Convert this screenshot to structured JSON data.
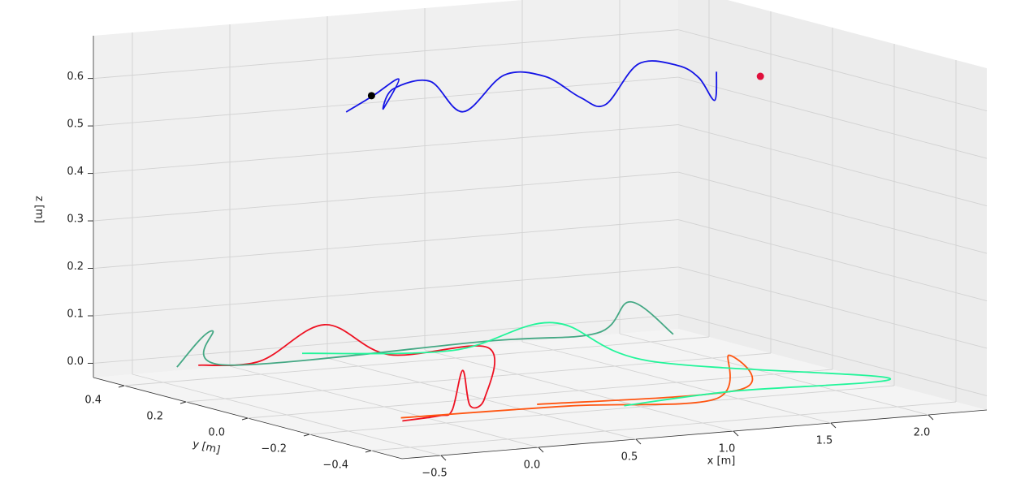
{
  "chart_data": {
    "type": "line3d",
    "xlabel": "x [m]",
    "ylabel": "y [m]",
    "zlabel": "z [m]",
    "xlim": [
      -0.7,
      2.3
    ],
    "ylim": [
      -0.5,
      0.5
    ],
    "zlim": [
      -0.03,
      0.69
    ],
    "xticks": [
      {
        "value": -0.5,
        "label": "−0.5"
      },
      {
        "value": 0,
        "label": "0.0"
      },
      0.5,
      {
        "value": 1,
        "label": "1.0"
      },
      1.5,
      {
        "value": 2,
        "label": "2.0"
      }
    ],
    "yticks": [
      {
        "value": -0.4,
        "label": "−0.4"
      },
      {
        "value": -0.2,
        "label": "−0.2"
      },
      {
        "value": 0,
        "label": "0.0"
      },
      0.2,
      0.4
    ],
    "zticks": [
      {
        "value": 0,
        "label": "0.0"
      },
      0.1,
      0.2,
      0.3,
      0.4,
      0.5,
      0.6
    ],
    "grid": true,
    "series": [
      {
        "color": "#1414e6",
        "x": [
          0.28,
          0.42,
          0.55,
          0.47,
          0.52,
          0.71,
          0.88,
          1.09,
          1.3,
          1.48,
          1.61,
          1.78,
          1.98,
          2.09,
          2.17,
          2.18
        ],
        "y": [
          0.3,
          0.3,
          0.3,
          0.3,
          0.3,
          0.3,
          0.3,
          0.3,
          0.3,
          0.3,
          0.3,
          0.3,
          0.3,
          0.3,
          0.3,
          0.3
        ],
        "z": [
          0.53,
          0.56,
          0.59,
          0.53,
          0.57,
          0.58,
          0.51,
          0.58,
          0.57,
          0.52,
          0.5,
          0.58,
          0.57,
          0.54,
          0.49,
          0.55
        ]
      },
      {
        "color": "#ee1122",
        "x": [
          -0.32,
          -0.02,
          0.28,
          0.58,
          1.07,
          0.31,
          0.14,
          0.07,
          0.0,
          -0.13,
          -0.35
        ],
        "y": [
          0.4,
          0.39,
          0.37,
          0.35,
          0.34,
          -0.13,
          -0.19,
          -0.21,
          -0.22,
          -0.26,
          -0.28
        ],
        "z": [
          0,
          0,
          0.07,
          0,
          0,
          0,
          0,
          0.08,
          0,
          0,
          0
        ]
      },
      {
        "color": "#ff5511",
        "x": [
          -0.31,
          0.52,
          1.19,
          1.26,
          1.43,
          0.42
        ],
        "y": [
          -0.25,
          -0.27,
          -0.32,
          -0.32,
          -0.25,
          -0.23
        ],
        "z": [
          0,
          0,
          0,
          0.09,
          0,
          0
        ]
      },
      {
        "color": "#44a884",
        "x": [
          -0.43,
          -0.25,
          -0.21,
          1.16,
          1.71,
          1.88,
          1.99
        ],
        "y": [
          0.4,
          0.4,
          0.38,
          0.4,
          0.39,
          0.39,
          0.32
        ],
        "z": [
          0,
          0.07,
          0,
          0,
          0,
          0.06,
          0
        ]
      },
      {
        "color": "#22f59a",
        "x": [
          0.26,
          0.89,
          1.34,
          1.5,
          2.18,
          1.37,
          0.74
        ],
        "y": [
          0.43,
          0.34,
          0.3,
          0.09,
          -0.26,
          -0.26,
          -0.31
        ],
        "z": [
          0,
          0,
          0.05,
          0,
          0,
          0,
          0
        ]
      }
    ],
    "points": [
      {
        "color": "#000000",
        "x": 0.41,
        "y": 0.3,
        "z": 0.56
      },
      {
        "color": "#e0103c",
        "x": 1.93,
        "y": 0,
        "z": 0.6
      }
    ]
  }
}
